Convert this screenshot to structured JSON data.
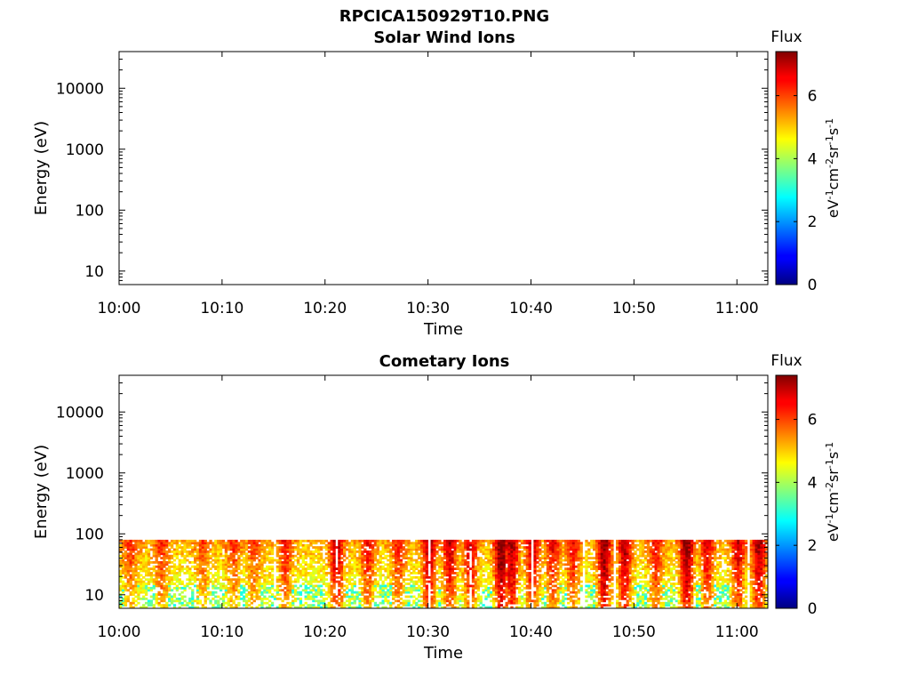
{
  "figure": {
    "title": "RPCICA150929T10.PNG"
  },
  "chart_data": [
    {
      "type": "heatmap",
      "title": "Solar Wind Ions",
      "xlabel": "Time",
      "ylabel": "Energy (eV)",
      "x_ticks": [
        "10:00",
        "10:10",
        "10:20",
        "10:30",
        "10:40",
        "10:50",
        "11:00"
      ],
      "xlim": [
        "10:00",
        "11:03"
      ],
      "y_scale": "log",
      "y_ticks": [
        10,
        100,
        1000,
        10000
      ],
      "y_tick_labels": [
        "10",
        "100",
        "1000",
        "10000"
      ],
      "ylim": [
        6,
        40000
      ],
      "colorbar": {
        "title": "Flux",
        "label": "eV-1cm-2sr-1s-1",
        "label_parts": [
          {
            "t": "eV",
            "sup": false
          },
          {
            "t": "-1",
            "sup": true
          },
          {
            "t": "cm",
            "sup": false
          },
          {
            "t": "-2",
            "sup": true
          },
          {
            "t": "sr",
            "sup": false
          },
          {
            "t": "-1",
            "sup": true
          },
          {
            "t": "s",
            "sup": false
          },
          {
            "t": "-1",
            "sup": true
          }
        ],
        "range": [
          0,
          7.4
        ],
        "ticks": [
          0,
          2,
          4,
          6
        ],
        "colormap": "jet"
      },
      "data_present": false
    },
    {
      "type": "heatmap",
      "title": "Cometary Ions",
      "xlabel": "Time",
      "ylabel": "Energy (eV)",
      "x_ticks": [
        "10:00",
        "10:10",
        "10:20",
        "10:30",
        "10:40",
        "10:50",
        "11:00"
      ],
      "xlim": [
        "10:00",
        "11:03"
      ],
      "y_scale": "log",
      "y_ticks": [
        10,
        100,
        1000,
        10000
      ],
      "y_tick_labels": [
        "10",
        "100",
        "1000",
        "10000"
      ],
      "ylim": [
        6,
        40000
      ],
      "colorbar": {
        "title": "Flux",
        "label": "eV-1cm-2sr-1s-1",
        "label_parts": [
          {
            "t": "eV",
            "sup": false
          },
          {
            "t": "-1",
            "sup": true
          },
          {
            "t": "cm",
            "sup": false
          },
          {
            "t": "-2",
            "sup": true
          },
          {
            "t": "sr",
            "sup": false
          },
          {
            "t": "-1",
            "sup": true
          },
          {
            "t": "s",
            "sup": false
          },
          {
            "t": "-1",
            "sup": true
          }
        ],
        "range": [
          0,
          7.4
        ],
        "ticks": [
          0,
          2,
          4,
          6
        ],
        "colormap": "jet"
      },
      "data_present": true,
      "energy_band": [
        6,
        80
      ],
      "typical_flux": 4.6,
      "bursts": [
        {
          "time": "10:01",
          "flux": 5.6
        },
        {
          "time": "10:04",
          "flux": 5.7
        },
        {
          "time": "10:08",
          "flux": 5.4
        },
        {
          "time": "10:11",
          "flux": 5.6
        },
        {
          "time": "10:13",
          "flux": 5.5
        },
        {
          "time": "10:16",
          "flux": 5.8
        },
        {
          "time": "10:21",
          "flux": 6.4
        },
        {
          "time": "10:24",
          "flux": 5.9
        },
        {
          "time": "10:27",
          "flux": 5.8
        },
        {
          "time": "10:30",
          "flux": 6.5
        },
        {
          "time": "10:32",
          "flux": 6.3
        },
        {
          "time": "10:34",
          "flux": 6.2
        },
        {
          "time": "10:37",
          "flux": 7.0
        },
        {
          "time": "10:38",
          "flux": 6.6
        },
        {
          "time": "10:40",
          "flux": 6.3
        },
        {
          "time": "10:42",
          "flux": 6.0
        },
        {
          "time": "10:44",
          "flux": 5.9
        },
        {
          "time": "10:47",
          "flux": 6.8
        },
        {
          "time": "10:49",
          "flux": 6.5
        },
        {
          "time": "10:52",
          "flux": 5.9
        },
        {
          "time": "10:55",
          "flux": 6.8
        },
        {
          "time": "10:57",
          "flux": 6.1
        },
        {
          "time": "11:00",
          "flux": 6.2
        },
        {
          "time": "11:02",
          "flux": 6.6
        }
      ],
      "gaps": [
        "10:15",
        "10:21",
        "10:30",
        "10:34",
        "10:40",
        "10:45",
        "10:48",
        "11:01"
      ]
    }
  ]
}
